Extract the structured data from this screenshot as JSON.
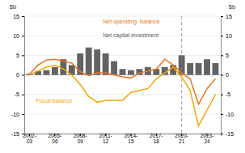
{
  "chart_data": {
    "type": "bar",
    "ylabel": "$b",
    "y2label": "$b",
    "categories": [
      "2002-\n03",
      null,
      null,
      "2005-\n06",
      null,
      null,
      "2008-\n09",
      null,
      null,
      "2011-\n12",
      null,
      null,
      "2014-\n15",
      null,
      null,
      "2017-\n18",
      null,
      null,
      "2020-\n21",
      null,
      null,
      "2023-\n24",
      null
    ],
    "series": [
      {
        "name": "Net capital investment",
        "type": "bar",
        "color": "#636363",
        "values": [
          0.3,
          1.0,
          1.2,
          2.0,
          4.0,
          2.5,
          5.5,
          7.0,
          6.5,
          5.5,
          3.5,
          1.5,
          1.2,
          1.5,
          2.0,
          1.5,
          2.0,
          2.5,
          5.0,
          3.0,
          3.0,
          4.0,
          3.0
        ]
      },
      {
        "name": "Net operating  balance",
        "type": "line",
        "color": "#E87722",
        "values": [
          0.2,
          2.5,
          3.8,
          4.0,
          3.5,
          3.0,
          0.8,
          -0.2,
          0.5,
          0.5,
          0.0,
          -0.5,
          -0.8,
          0.5,
          1.0,
          1.5,
          4.0,
          2.5,
          0.5,
          -1.0,
          -7.5,
          -3.5,
          -1.0
        ]
      },
      {
        "name": "Fiscal balance",
        "type": "line",
        "color": "#F5A800",
        "values": [
          0.0,
          1.0,
          2.0,
          2.5,
          1.5,
          0.0,
          -2.5,
          -5.5,
          -7.0,
          -6.5,
          -6.5,
          -6.5,
          -4.5,
          -4.0,
          -3.5,
          -1.0,
          0.5,
          2.0,
          -0.5,
          -4.0,
          -13.0,
          -9.0,
          -5.0
        ]
      }
    ],
    "vline": 18,
    "ylim": [
      -15,
      15
    ],
    "yticks": [
      -15,
      -10,
      -5,
      0,
      5,
      10,
      15
    ],
    "y2lim": [
      -15,
      15
    ],
    "y2ticks": [
      -15,
      -10,
      -5,
      0,
      5,
      10,
      15
    ],
    "grid": true
  }
}
